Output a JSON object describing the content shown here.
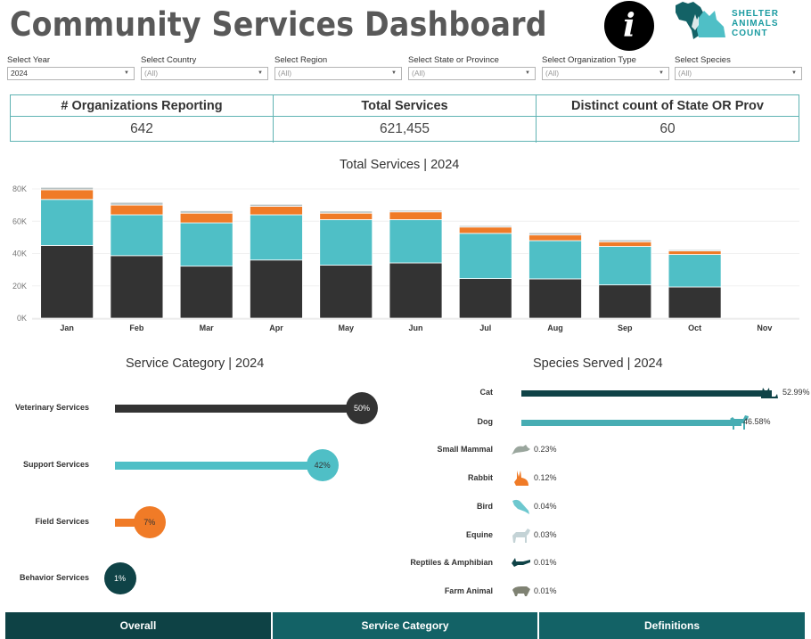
{
  "header": {
    "title": "Community Services Dashboard",
    "info_icon": "info-icon",
    "logo_lines": [
      "SHELTER",
      "ANIMALS",
      "COUNT"
    ]
  },
  "filters": [
    {
      "label": "Select Year",
      "value": "2024"
    },
    {
      "label": "Select Country",
      "value": "(All)"
    },
    {
      "label": "Select Region",
      "value": "(All)"
    },
    {
      "label": "Select State or Province",
      "value": "(All)"
    },
    {
      "label": "Select Organization Type",
      "value": "(All)"
    },
    {
      "label": "Select Species",
      "value": "(All)"
    }
  ],
  "kpis": [
    {
      "label": "# Organizations Reporting",
      "value": "642"
    },
    {
      "label": "Total Services",
      "value": "621,455"
    },
    {
      "label": "Distinct count of State OR Prov",
      "value": "60"
    }
  ],
  "colors": {
    "veterinary": "#333333",
    "support": "#4fbfc6",
    "field": "#f07b27",
    "behavior": "#0f4347",
    "other": "#b9c3c4",
    "nav_active": "#0e4245",
    "nav": "#136266",
    "cat": "#0f4347",
    "dog": "#47adb3"
  },
  "chart_data": [
    {
      "type": "bar",
      "stacked": true,
      "title": "Total Services | 2024",
      "xlabel": "",
      "ylabel": "",
      "categories": [
        "Jan",
        "Feb",
        "Mar",
        "Apr",
        "May",
        "Jun",
        "Jul",
        "Aug",
        "Sep",
        "Oct",
        "Nov"
      ],
      "yticks": [
        "0K",
        "20K",
        "40K",
        "60K",
        "80K"
      ],
      "ylim": [
        0,
        80000
      ],
      "grid": true,
      "series": [
        {
          "name": "Veterinary Services",
          "color": "#333333",
          "values": [
            45000,
            38700,
            32200,
            36000,
            32800,
            34200,
            24500,
            24300,
            20600,
            19300,
            0
          ]
        },
        {
          "name": "Support Services",
          "color": "#4fbfc6",
          "values": [
            28500,
            25300,
            26800,
            28000,
            28200,
            26800,
            28000,
            23700,
            23800,
            20100,
            0
          ]
        },
        {
          "name": "Field Services",
          "color": "#f07b27",
          "values": [
            6000,
            6000,
            6000,
            5200,
            4000,
            4800,
            3900,
            3500,
            2900,
            2200,
            0
          ]
        },
        {
          "name": "Behavior Services",
          "color": "#b9c3c4",
          "values": [
            1500,
            1700,
            1500,
            1300,
            1300,
            1000,
            900,
            1400,
            1200,
            800,
            0
          ]
        }
      ]
    },
    {
      "type": "bar",
      "orientation": "horizontal",
      "title": "Service Category | 2024",
      "categories": [
        "Veterinary Services",
        "Support Services",
        "Field Services",
        "Behavior Services"
      ],
      "values": [
        50,
        42,
        7,
        1
      ],
      "labels": [
        "50%",
        "42%",
        "7%",
        "1%"
      ],
      "colors": [
        "#333333",
        "#4fbfc6",
        "#f07b27",
        "#0f4347"
      ],
      "unit": "%"
    },
    {
      "type": "bar",
      "orientation": "horizontal",
      "title": "Species Served | 2024",
      "categories": [
        "Cat",
        "Dog",
        "Small Mammal",
        "Rabbit",
        "Bird",
        "Equine",
        "Reptiles & Amphibian",
        "Farm Animal"
      ],
      "values": [
        52.99,
        46.58,
        0.23,
        0.12,
        0.04,
        0.03,
        0.01,
        0.01
      ],
      "labels": [
        "52.99%",
        "46.58%",
        "0.23%",
        "0.12%",
        "0.04%",
        "0.03%",
        "0.01%",
        "0.01%"
      ],
      "icons": [
        "cat-icon",
        "dog-icon",
        "mouse-icon",
        "rabbit-icon",
        "bird-icon",
        "horse-icon",
        "lizard-icon",
        "pig-icon"
      ],
      "icon_colors": [
        "#0f4347",
        "#47adb3",
        "#9aa69d",
        "#f07b27",
        "#6dc8cf",
        "#c4d3d6",
        "#0f4347",
        "#7f8273"
      ],
      "unit": "%"
    }
  ],
  "nav": [
    {
      "label": "Overall",
      "active": true
    },
    {
      "label": "Service Category",
      "active": false
    },
    {
      "label": "Definitions",
      "active": false
    }
  ]
}
